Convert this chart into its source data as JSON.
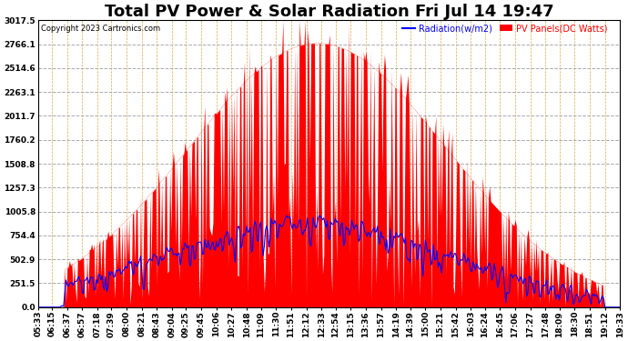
{
  "title": "Total PV Power & Solar Radiation Fri Jul 14 19:47",
  "copyright": "Copyright 2023 Cartronics.com",
  "legend_radiation": "Radiation(w/m2)",
  "legend_panels": "PV Panels(DC Watts)",
  "yticks": [
    0.0,
    251.5,
    502.9,
    754.4,
    1005.8,
    1257.3,
    1508.8,
    1760.2,
    2011.7,
    2263.1,
    2514.6,
    2766.1,
    3017.5
  ],
  "ymax": 3017.5,
  "ymin": 0.0,
  "background_color": "#ffffff",
  "plot_bg_color": "#ffffff",
  "grid_color": "#aaaaaa",
  "pv_color": "#ff0000",
  "radiation_color": "#0000ff",
  "title_fontsize": 13,
  "tick_fontsize": 6.5,
  "n_points": 500,
  "x_labels": [
    "05:33",
    "06:15",
    "06:37",
    "06:57",
    "07:18",
    "07:39",
    "08:00",
    "08:21",
    "08:43",
    "09:04",
    "09:25",
    "09:45",
    "10:06",
    "10:27",
    "10:48",
    "11:09",
    "11:30",
    "11:51",
    "12:12",
    "12:33",
    "12:54",
    "13:15",
    "13:36",
    "13:57",
    "14:19",
    "14:39",
    "15:00",
    "15:21",
    "15:42",
    "16:03",
    "16:24",
    "16:45",
    "17:06",
    "17:27",
    "17:48",
    "18:09",
    "18:30",
    "18:51",
    "19:12",
    "19:33"
  ]
}
